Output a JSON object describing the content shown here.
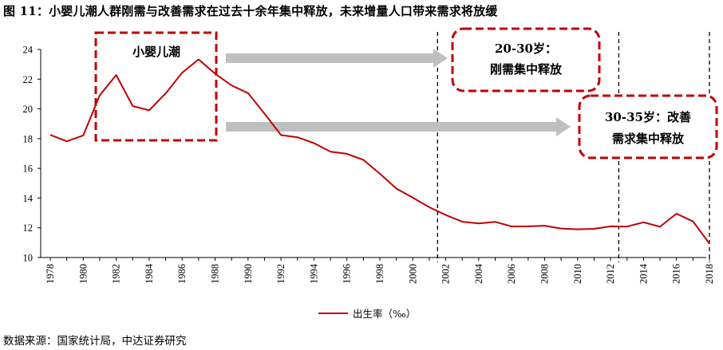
{
  "figure": {
    "title": "图 11：小婴儿潮人群刚需与改善需求在过去十余年集中释放，未来增量人口带来需求将放缓",
    "source": "数据来源：国家统计局，中达证券研究"
  },
  "chart_data": {
    "type": "line",
    "title": "图 11：小婴儿潮人群刚需与改善需求在过去十余年集中释放，未来增量人口带来需求将放缓",
    "xlabel": "",
    "ylabel": "",
    "xlim": [
      1978,
      2018
    ],
    "ylim": [
      10,
      24
    ],
    "x_ticks": [
      1978,
      1980,
      1982,
      1984,
      1986,
      1988,
      1990,
      1992,
      1994,
      1996,
      1998,
      2000,
      2002,
      2004,
      2006,
      2008,
      2010,
      2012,
      2014,
      2016,
      2018
    ],
    "y_ticks": [
      10,
      12,
      14,
      16,
      18,
      20,
      22,
      24
    ],
    "grid": false,
    "legend_position": "bottom-center",
    "series": [
      {
        "name": "出生率（‰）",
        "color": "#c00000",
        "x": [
          1978,
          1979,
          1980,
          1981,
          1982,
          1983,
          1984,
          1985,
          1986,
          1987,
          1988,
          1989,
          1990,
          1991,
          1992,
          1993,
          1994,
          1995,
          1996,
          1997,
          1998,
          1999,
          2000,
          2001,
          2002,
          2003,
          2004,
          2005,
          2006,
          2007,
          2008,
          2009,
          2010,
          2011,
          2012,
          2013,
          2014,
          2015,
          2016,
          2017,
          2018
        ],
        "y": [
          18.25,
          17.82,
          18.21,
          20.91,
          22.28,
          20.19,
          19.9,
          21.04,
          22.43,
          23.33,
          22.37,
          21.58,
          21.06,
          19.68,
          18.24,
          18.09,
          17.7,
          17.12,
          16.98,
          16.57,
          15.64,
          14.64,
          14.03,
          13.38,
          12.86,
          12.41,
          12.29,
          12.4,
          12.09,
          12.1,
          12.14,
          11.95,
          11.9,
          11.93,
          12.1,
          12.08,
          12.37,
          12.07,
          12.95,
          12.43,
          10.94
        ]
      }
    ],
    "vlines": [
      2001.5,
      2012.5,
      2018
    ],
    "annotations": [
      {
        "text": "小婴儿潮"
      },
      {
        "lines": [
          "20-30岁：",
          "刚需集中释放"
        ]
      },
      {
        "lines": [
          "30-35岁：改善",
          "需求集中释放"
        ]
      }
    ]
  }
}
